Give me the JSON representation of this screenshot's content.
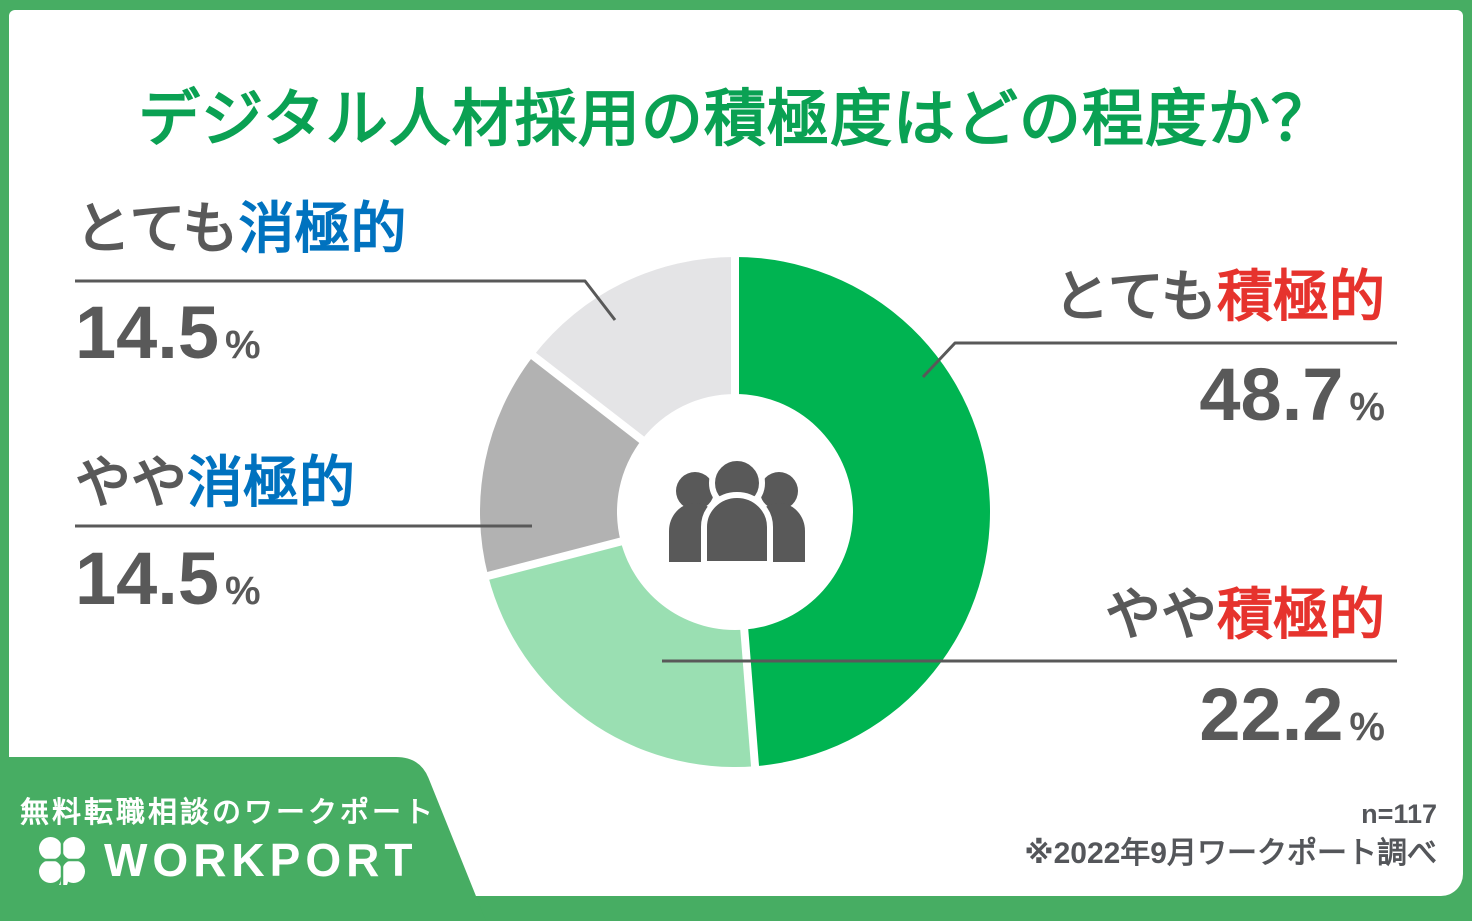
{
  "title": "デジタル人材採用の積極度はどの程度か？",
  "colors": {
    "title_green": "#0AA153",
    "brand_green": "#47AD63",
    "negative_blue": "#0072BF",
    "positive_red": "#E6332D",
    "text_gray": "#595959",
    "footer_text": "#54565A",
    "icon_gray": "#595959",
    "donut_green": "#00B451",
    "donut_light_green": "#9ADFB2",
    "donut_gray": "#B2B2B2",
    "donut_light_gray": "#E4E4E6"
  },
  "chart_data": {
    "type": "pie",
    "subtype": "donut",
    "title": "デジタル人材採用の積極度はどの程度か？",
    "unit": "%",
    "sample_size": 117,
    "start_angle_deg": 0,
    "direction": "clockwise",
    "center_icon": "people-group",
    "segments": [
      {
        "id": "very-positive",
        "label": "とても積極的",
        "value": 48.7,
        "color": "#00B451"
      },
      {
        "id": "somewhat-positive",
        "label": "やや積極的",
        "value": 22.2,
        "color": "#9ADFB2"
      },
      {
        "id": "somewhat-negative",
        "label": "やや消極的",
        "value": 14.5,
        "color": "#B2B2B2"
      },
      {
        "id": "very-negative",
        "label": "とても消極的",
        "value": 14.5,
        "color": "#E4E4E6"
      }
    ]
  },
  "callouts": {
    "very_negative": {
      "prefix": "とても",
      "suffix": "消極的",
      "value": "14.5",
      "unit": "%"
    },
    "somewhat_negative": {
      "prefix": "やや",
      "suffix": "消極的",
      "value": "14.5",
      "unit": "%"
    },
    "very_positive": {
      "prefix": "とても",
      "suffix": "積極的",
      "value": "48.7",
      "unit": "%"
    },
    "somewhat_positive": {
      "prefix": "やや",
      "suffix": "積極的",
      "value": "22.2",
      "unit": "%"
    }
  },
  "footer": {
    "banner_tagline": "無料転職相談のワークポート",
    "brand": "WORKPORT",
    "sample": "n=117",
    "source": "※2022年9月ワークポート調べ"
  }
}
